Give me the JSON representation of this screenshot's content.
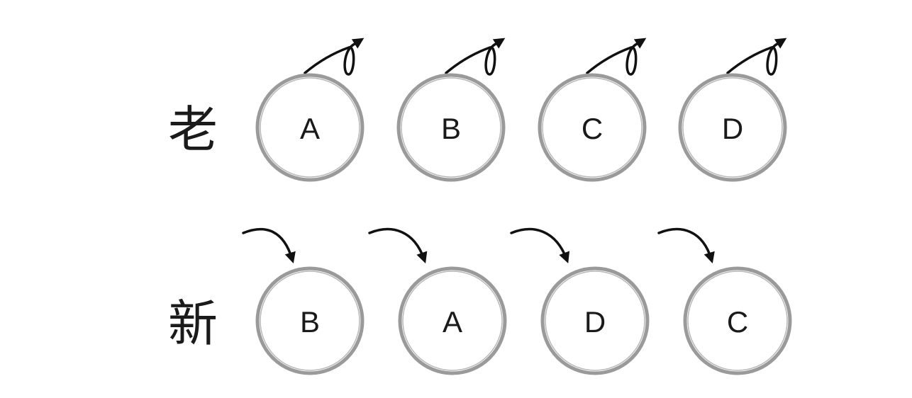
{
  "rows": [
    {
      "label": "老",
      "nodes": [
        "A",
        "B",
        "C",
        "D"
      ],
      "arrow_style": "loop-out-icon"
    },
    {
      "label": "新",
      "nodes": [
        "B",
        "A",
        "D",
        "C"
      ],
      "arrow_style": "arrow-in-icon"
    }
  ],
  "colors": {
    "ring": "#9a9a9a",
    "text": "#1a1a1a",
    "arrow": "#111111"
  }
}
